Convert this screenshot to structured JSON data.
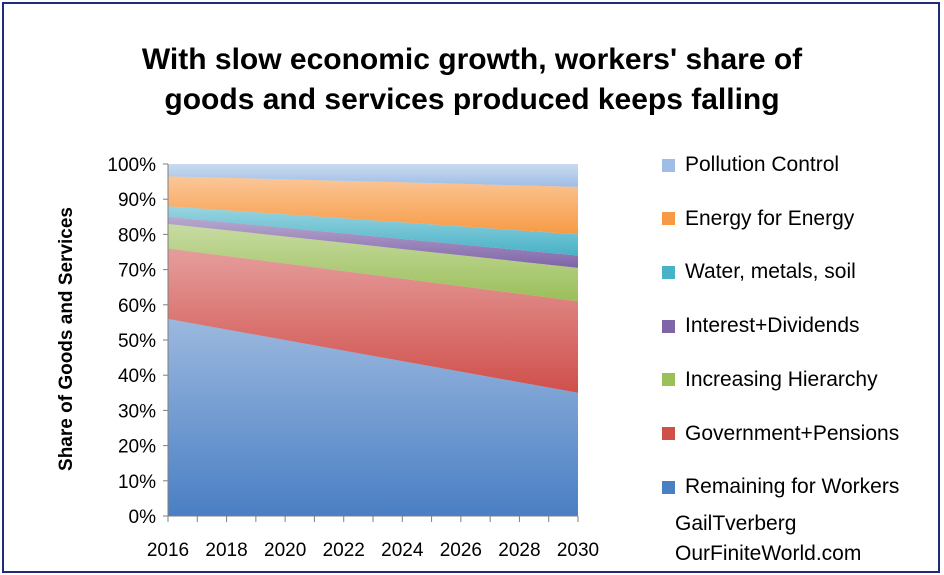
{
  "chart_data": {
    "type": "area",
    "stacked": true,
    "title_lines": [
      "With slow economic growth, workers' share of",
      "goods and services produced keeps falling"
    ],
    "ylabel": "Share of Goods and Services",
    "x_ticks": [
      "2016",
      "2018",
      "2020",
      "2022",
      "2024",
      "2026",
      "2028",
      "2030"
    ],
    "y_ticks": [
      "0%",
      "10%",
      "20%",
      "30%",
      "40%",
      "50%",
      "60%",
      "70%",
      "80%",
      "90%",
      "100%"
    ],
    "x": [
      2016,
      2030
    ],
    "xlim": [
      2016,
      2030
    ],
    "ylim": [
      0,
      100
    ],
    "series": [
      {
        "name": "Remaining for Workers",
        "values": [
          56,
          35
        ],
        "color": "#4a7fc4"
      },
      {
        "name": "Government+Pensions",
        "values": [
          20,
          26
        ],
        "color": "#d04f4b"
      },
      {
        "name": "Increasing Hierarchy",
        "values": [
          7,
          9.5
        ],
        "color": "#9bbf59"
      },
      {
        "name": "Interest+Dividends",
        "values": [
          2,
          3.5
        ],
        "color": "#7f64a8"
      },
      {
        "name": "Water, metals, soil",
        "values": [
          3,
          6
        ],
        "color": "#48b2c8"
      },
      {
        "name": "Energy for Energy",
        "values": [
          8.5,
          13.5
        ],
        "color": "#f79a45"
      },
      {
        "name": "Pollution Control",
        "values": [
          3.5,
          6.5
        ],
        "color": "#9fbde6"
      }
    ],
    "legend_order": [
      "Pollution Control",
      "Energy for Energy",
      "Water, metals, soil",
      "Interest+Dividends",
      "Increasing Hierarchy",
      "Government+Pensions",
      "Remaining for Workers"
    ],
    "legend_position": "right",
    "grid": false
  },
  "credits": [
    "GailTverberg",
    "OurFiniteWorld.com"
  ]
}
